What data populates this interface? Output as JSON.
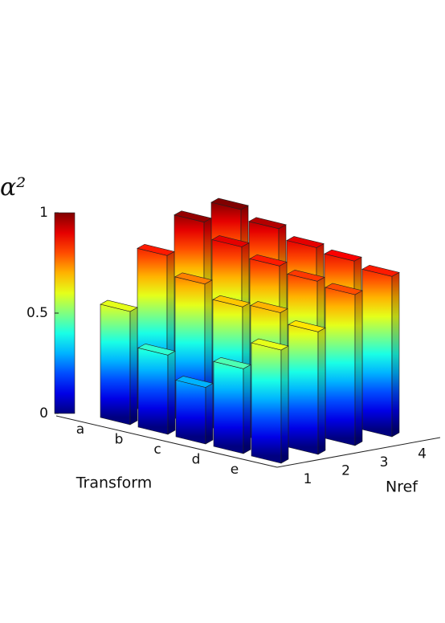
{
  "chart_data": {
    "type": "bar3d",
    "x_label": "Transform",
    "y_label": "Nref",
    "z_label": "α²",
    "categories": [
      "a",
      "b",
      "c",
      "d",
      "e"
    ],
    "series": [
      {
        "name": "1",
        "values": [
          0.6,
          0.42,
          0.3,
          0.45,
          0.6
        ]
      },
      {
        "name": "2",
        "values": [
          0.85,
          0.75,
          0.68,
          0.7,
          0.65
        ]
      },
      {
        "name": "3",
        "values": [
          0.98,
          0.9,
          0.85,
          0.82,
          0.8
        ]
      },
      {
        "name": "4",
        "values": [
          1.0,
          0.95,
          0.9,
          0.88,
          0.85
        ]
      }
    ],
    "colormap": "jet",
    "zlim": [
      0,
      1
    ],
    "zticks": [
      0,
      0.5,
      1
    ]
  }
}
